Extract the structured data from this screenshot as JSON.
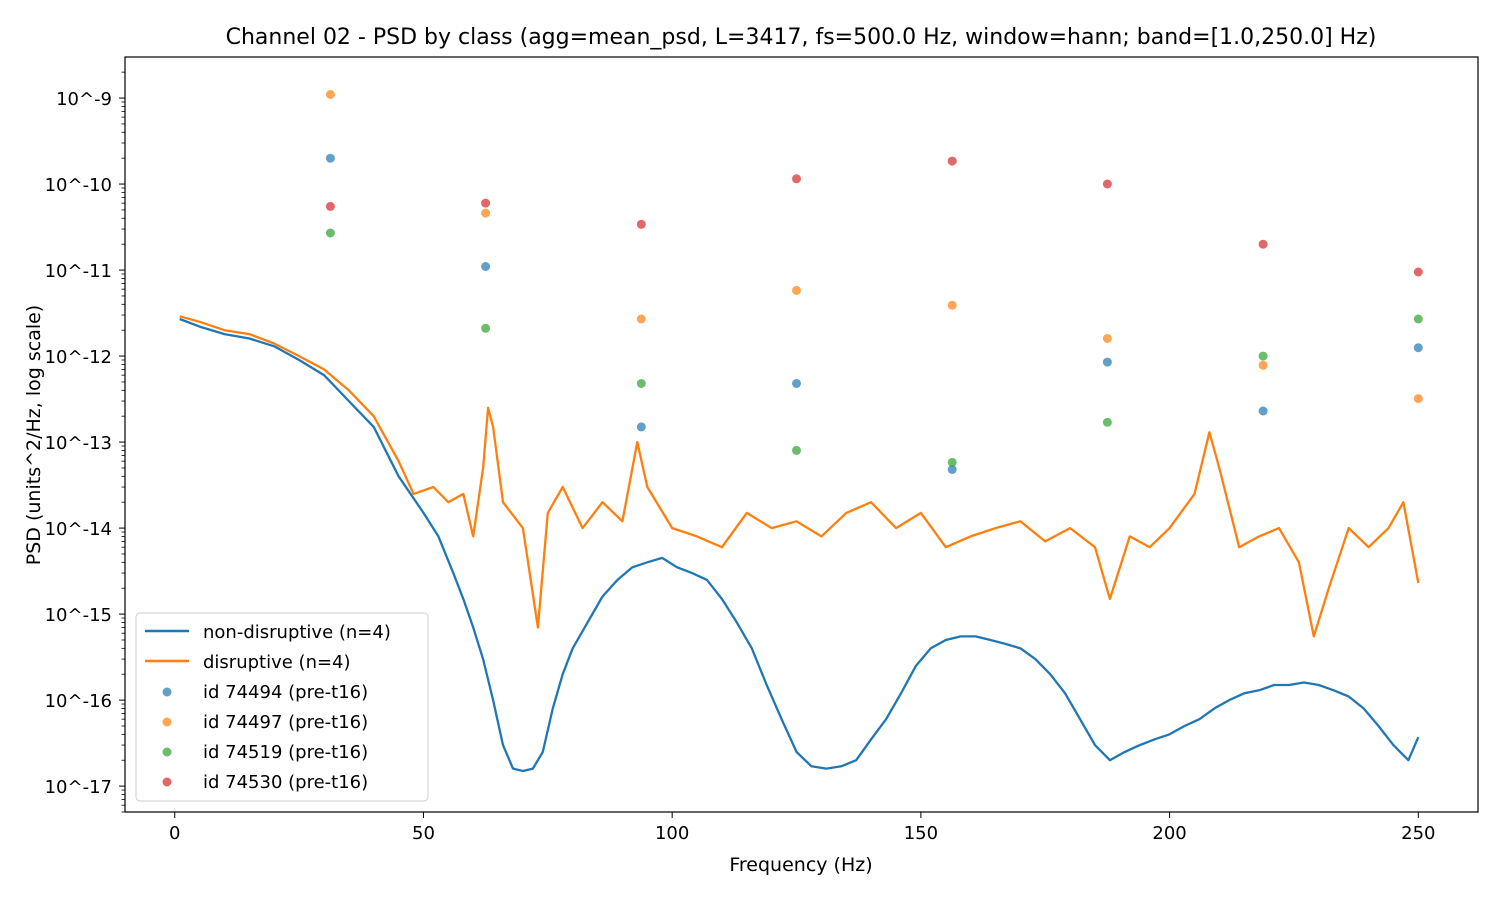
{
  "chart_data": {
    "type": "line",
    "title": "Channel 02 - PSD by class (agg=mean_psd, L=3417, fs=500.0 Hz, window=hann; band=[1.0,250.0] Hz)",
    "xlabel": "Frequency (Hz)",
    "ylabel": "PSD (units^2/Hz, log scale)",
    "xlim": [
      -10,
      262
    ],
    "ylim": [
      5e-18,
      3e-09
    ],
    "yscale": "log",
    "x_ticks": [
      "0",
      "50",
      "100",
      "150",
      "200",
      "250"
    ],
    "y_ticks": [
      "10^-17",
      "10^-16",
      "10^-15",
      "10^-14",
      "10^-13",
      "10^-12",
      "10^-11",
      "10^-10",
      "10^-9"
    ],
    "grid": false,
    "legend_position": "lower-left",
    "series": [
      {
        "name": "non-disruptive (n=4)",
        "kind": "line",
        "color": "#1f77b4",
        "points": [
          [
            1,
            2.7e-12
          ],
          [
            5,
            2.2e-12
          ],
          [
            10,
            1.8e-12
          ],
          [
            15,
            1.6e-12
          ],
          [
            20,
            1.3e-12
          ],
          [
            25,
            9e-13
          ],
          [
            30,
            6e-13
          ],
          [
            35,
            3e-13
          ],
          [
            40,
            1.5e-13
          ],
          [
            45,
            4e-14
          ],
          [
            50,
            1.5e-14
          ],
          [
            53,
            8e-15
          ],
          [
            56,
            3e-15
          ],
          [
            58,
            1.5e-15
          ],
          [
            60,
            7e-16
          ],
          [
            62,
            3e-16
          ],
          [
            64,
            1e-16
          ],
          [
            66,
            3e-17
          ],
          [
            68,
            1.6e-17
          ],
          [
            70,
            1.5e-17
          ],
          [
            72,
            1.6e-17
          ],
          [
            74,
            2.5e-17
          ],
          [
            76,
            8e-17
          ],
          [
            78,
            2e-16
          ],
          [
            80,
            4e-16
          ],
          [
            83,
            8e-16
          ],
          [
            86,
            1.6e-15
          ],
          [
            89,
            2.5e-15
          ],
          [
            92,
            3.5e-15
          ],
          [
            95,
            4e-15
          ],
          [
            98,
            4.5e-15
          ],
          [
            101,
            3.5e-15
          ],
          [
            104,
            3e-15
          ],
          [
            107,
            2.5e-15
          ],
          [
            110,
            1.5e-15
          ],
          [
            113,
            8e-16
          ],
          [
            116,
            4e-16
          ],
          [
            119,
            1.5e-16
          ],
          [
            122,
            6e-17
          ],
          [
            125,
            2.5e-17
          ],
          [
            128,
            1.7e-17
          ],
          [
            131,
            1.6e-17
          ],
          [
            134,
            1.7e-17
          ],
          [
            137,
            2e-17
          ],
          [
            140,
            3.5e-17
          ],
          [
            143,
            6e-17
          ],
          [
            146,
            1.2e-16
          ],
          [
            149,
            2.5e-16
          ],
          [
            152,
            4e-16
          ],
          [
            155,
            5e-16
          ],
          [
            158,
            5.5e-16
          ],
          [
            161,
            5.5e-16
          ],
          [
            164,
            5e-16
          ],
          [
            167,
            4.5e-16
          ],
          [
            170,
            4e-16
          ],
          [
            173,
            3e-16
          ],
          [
            176,
            2e-16
          ],
          [
            179,
            1.2e-16
          ],
          [
            182,
            6e-17
          ],
          [
            185,
            3e-17
          ],
          [
            188,
            2e-17
          ],
          [
            191,
            2.5e-17
          ],
          [
            194,
            3e-17
          ],
          [
            197,
            3.5e-17
          ],
          [
            200,
            4e-17
          ],
          [
            203,
            5e-17
          ],
          [
            206,
            6e-17
          ],
          [
            209,
            8e-17
          ],
          [
            212,
            1e-16
          ],
          [
            215,
            1.2e-16
          ],
          [
            218,
            1.3e-16
          ],
          [
            221,
            1.5e-16
          ],
          [
            224,
            1.5e-16
          ],
          [
            227,
            1.6e-16
          ],
          [
            230,
            1.5e-16
          ],
          [
            233,
            1.3e-16
          ],
          [
            236,
            1.1e-16
          ],
          [
            239,
            8e-17
          ],
          [
            242,
            5e-17
          ],
          [
            245,
            3e-17
          ],
          [
            248,
            2e-17
          ],
          [
            250,
            3.7e-17
          ]
        ]
      },
      {
        "name": "disruptive (n=4)",
        "kind": "line",
        "color": "#ff7f0e",
        "points": [
          [
            1,
            2.9e-12
          ],
          [
            5,
            2.5e-12
          ],
          [
            10,
            2e-12
          ],
          [
            15,
            1.8e-12
          ],
          [
            20,
            1.4e-12
          ],
          [
            25,
            1e-12
          ],
          [
            30,
            7e-13
          ],
          [
            35,
            4e-13
          ],
          [
            40,
            2e-13
          ],
          [
            45,
            6e-14
          ],
          [
            48,
            2.5e-14
          ],
          [
            52,
            3e-14
          ],
          [
            55,
            2e-14
          ],
          [
            58,
            2.5e-14
          ],
          [
            60,
            8e-15
          ],
          [
            62,
            5e-14
          ],
          [
            63,
            2.5e-13
          ],
          [
            64,
            1.5e-13
          ],
          [
            66,
            2e-14
          ],
          [
            70,
            1e-14
          ],
          [
            73,
            7e-16
          ],
          [
            75,
            1.5e-14
          ],
          [
            78,
            3e-14
          ],
          [
            82,
            1e-14
          ],
          [
            86,
            2e-14
          ],
          [
            90,
            1.2e-14
          ],
          [
            93,
            1e-13
          ],
          [
            95,
            3e-14
          ],
          [
            100,
            1e-14
          ],
          [
            105,
            8e-15
          ],
          [
            110,
            6e-15
          ],
          [
            115,
            1.5e-14
          ],
          [
            120,
            1e-14
          ],
          [
            125,
            1.2e-14
          ],
          [
            130,
            8e-15
          ],
          [
            135,
            1.5e-14
          ],
          [
            140,
            2e-14
          ],
          [
            145,
            1e-14
          ],
          [
            150,
            1.5e-14
          ],
          [
            155,
            6e-15
          ],
          [
            160,
            8e-15
          ],
          [
            165,
            1e-14
          ],
          [
            170,
            1.2e-14
          ],
          [
            175,
            7e-15
          ],
          [
            180,
            1e-14
          ],
          [
            185,
            6e-15
          ],
          [
            188,
            1.5e-15
          ],
          [
            192,
            8e-15
          ],
          [
            196,
            6e-15
          ],
          [
            200,
            1e-14
          ],
          [
            205,
            2.5e-14
          ],
          [
            208,
            1.3e-13
          ],
          [
            210,
            5e-14
          ],
          [
            214,
            6e-15
          ],
          [
            218,
            8e-15
          ],
          [
            222,
            1e-14
          ],
          [
            226,
            4e-15
          ],
          [
            229,
            5.5e-16
          ],
          [
            232,
            2e-15
          ],
          [
            236,
            1e-14
          ],
          [
            240,
            6e-15
          ],
          [
            244,
            1e-14
          ],
          [
            247,
            2e-14
          ],
          [
            250,
            2.3e-15
          ]
        ]
      },
      {
        "name": "id 74494 (pre-t16)",
        "kind": "scatter",
        "color": "#1f77b4",
        "points": [
          [
            31.3,
            2e-10
          ],
          [
            62.5,
            1.1e-11
          ],
          [
            93.8,
            1.5e-13
          ],
          [
            125,
            4.8e-13
          ],
          [
            156.3,
            4.8e-14
          ],
          [
            187.5,
            8.5e-13
          ],
          [
            218.8,
            2.3e-13
          ],
          [
            250,
            1.25e-12
          ]
        ]
      },
      {
        "name": "id 74497 (pre-t16)",
        "kind": "scatter",
        "color": "#ff7f0e",
        "points": [
          [
            31.3,
            1.1e-09
          ],
          [
            62.5,
            4.6e-11
          ],
          [
            93.8,
            2.7e-12
          ],
          [
            125,
            5.8e-12
          ],
          [
            156.3,
            3.9e-12
          ],
          [
            187.5,
            1.6e-12
          ],
          [
            218.8,
            7.8e-13
          ],
          [
            250,
            3.2e-13
          ]
        ]
      },
      {
        "name": "id 74519 (pre-t16)",
        "kind": "scatter",
        "color": "#2ca02c",
        "points": [
          [
            31.3,
            2.7e-11
          ],
          [
            62.5,
            2.1e-12
          ],
          [
            93.8,
            4.8e-13
          ],
          [
            125,
            8e-14
          ],
          [
            156.3,
            5.8e-14
          ],
          [
            187.5,
            1.7e-13
          ],
          [
            218.8,
            1e-12
          ],
          [
            250,
            2.7e-12
          ]
        ]
      },
      {
        "name": "id 74530 (pre-t16)",
        "kind": "scatter",
        "color": "#d62728",
        "points": [
          [
            31.3,
            5.5e-11
          ],
          [
            62.5,
            6e-11
          ],
          [
            93.8,
            3.4e-11
          ],
          [
            125,
            1.15e-10
          ],
          [
            156.3,
            1.85e-10
          ],
          [
            187.5,
            1e-10
          ],
          [
            218.8,
            2e-11
          ],
          [
            250,
            9.5e-12
          ]
        ]
      }
    ]
  }
}
